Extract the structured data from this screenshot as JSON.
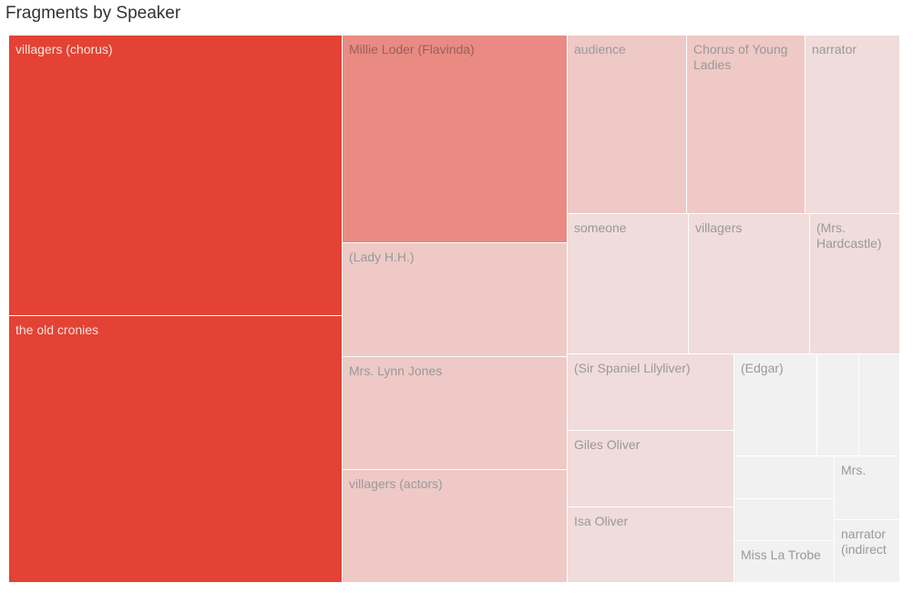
{
  "title": "Fragments by Speaker",
  "chart_data": {
    "type": "treemap",
    "title": "Fragments by Speaker",
    "color_scale": {
      "high": "#e34234",
      "mid": "#e98b82",
      "low": "#f1f1f1"
    },
    "items": [
      {
        "label": "villagers (chorus)",
        "value": 22,
        "color": "#e34234"
      },
      {
        "label": "the old cronies",
        "value": 22,
        "color": "#e34234"
      },
      {
        "label": "Millie Loder (Flavinda)",
        "value": 11,
        "color": "#e98b82"
      },
      {
        "label": "(Lady H.H.)",
        "value": 6,
        "color": "#eec9c5"
      },
      {
        "label": "Mrs. Lynn Jones",
        "value": 6,
        "color": "#eec9c5"
      },
      {
        "label": "villagers (actors)",
        "value": 6,
        "color": "#eec9c5"
      },
      {
        "label": "audience",
        "value": 5,
        "color": "#eec9c5"
      },
      {
        "label": "Chorus of Young Ladies",
        "value": 5,
        "color": "#eec9c5"
      },
      {
        "label": "narrator",
        "value": 4,
        "color": "#f0dcdb"
      },
      {
        "label": "someone",
        "value": 4,
        "color": "#f0dcdb"
      },
      {
        "label": "villagers",
        "value": 4,
        "color": "#f0dcdb"
      },
      {
        "label": "(Mrs. Hardcastle)",
        "value": 3,
        "color": "#f0dcdb"
      },
      {
        "label": "(Sir Spaniel Lilyliver)",
        "value": 3,
        "color": "#f0dcdb"
      },
      {
        "label": "Giles Oliver",
        "value": 3,
        "color": "#f0dcdb"
      },
      {
        "label": "Isa Oliver",
        "value": 3,
        "color": "#f0dcdb"
      },
      {
        "label": "(Edgar)",
        "value": 2,
        "color": "#f1f1f1"
      },
      {
        "label": "",
        "value": 1,
        "color": "#f1f1f1"
      },
      {
        "label": "",
        "value": 1,
        "color": "#f1f1f1"
      },
      {
        "label": "",
        "value": 1,
        "color": "#f1f1f1"
      },
      {
        "label": "Mrs.",
        "value": 1,
        "color": "#f1f1f1"
      },
      {
        "label": "",
        "value": 1,
        "color": "#f1f1f1"
      },
      {
        "label": "Miss La Trobe",
        "value": 1,
        "color": "#f1f1f1"
      },
      {
        "label": "narrator (indirect",
        "value": 1,
        "color": "#f1f1f1"
      }
    ],
    "label_colors": {
      "dark_bg": "#fbe4e1",
      "light_bg": "#999999"
    }
  }
}
